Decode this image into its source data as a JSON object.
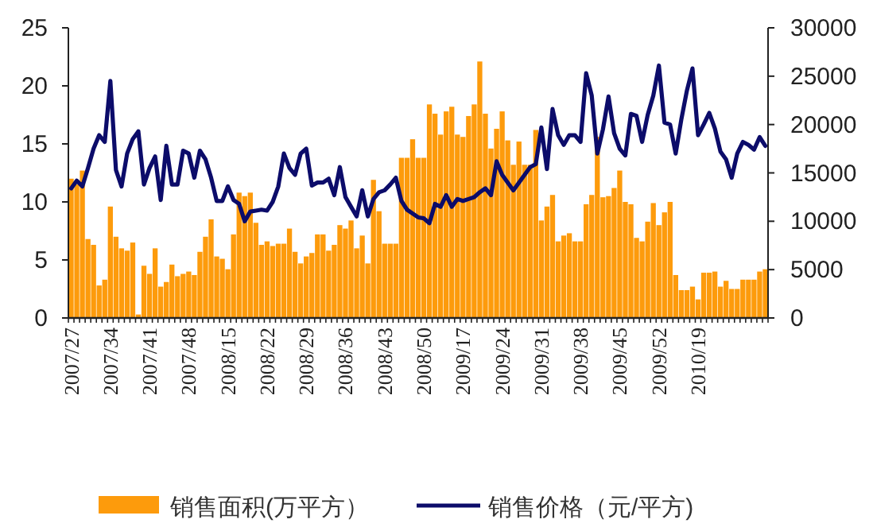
{
  "chart_data": {
    "type": "bar",
    "legend": "bottom",
    "categories": [
      "2007/27",
      null,
      null,
      null,
      null,
      null,
      null,
      "2007/34",
      null,
      null,
      null,
      null,
      null,
      null,
      "2007/41",
      null,
      null,
      null,
      null,
      null,
      null,
      "2007/48",
      null,
      null,
      null,
      null,
      null,
      null,
      "2008/15",
      null,
      null,
      null,
      null,
      null,
      null,
      "2008/22",
      null,
      null,
      null,
      null,
      null,
      null,
      "2008/29",
      null,
      null,
      null,
      null,
      null,
      null,
      "2008/36",
      null,
      null,
      null,
      null,
      null,
      null,
      "2008/43",
      null,
      null,
      null,
      null,
      null,
      null,
      "2008/50",
      null,
      null,
      null,
      null,
      null,
      null,
      "2009/17",
      null,
      null,
      null,
      null,
      null,
      null,
      "2009/24",
      null,
      null,
      null,
      null,
      null,
      null,
      "2009/31",
      null,
      null,
      null,
      null,
      null,
      null,
      "2009/38",
      null,
      null,
      null,
      null,
      null,
      null,
      "2009/45",
      null,
      null,
      null,
      null,
      null,
      null,
      "2009/52",
      null,
      null,
      null,
      null,
      null,
      null,
      "2010/19",
      null,
      null,
      null,
      null,
      null,
      null,
      null,
      null,
      null,
      null,
      null,
      null
    ],
    "ylim": [
      0,
      25
    ],
    "yticks": [
      0,
      5,
      10,
      15,
      20,
      25
    ],
    "y2lim": [
      0,
      30000
    ],
    "y2ticks": [
      0,
      5000,
      10000,
      15000,
      20000,
      25000,
      30000
    ],
    "series": [
      {
        "name": "销售面积(万平方）",
        "color": "#fd9b0c",
        "values": [
          12.0,
          11.5,
          12.7,
          6.8,
          6.3,
          2.8,
          3.3,
          9.6,
          7.0,
          6.0,
          5.8,
          6.5,
          0.3,
          4.5,
          3.8,
          6.0,
          2.7,
          3.1,
          4.6,
          3.6,
          3.8,
          4.0,
          3.7,
          5.7,
          7.0,
          8.5,
          5.3,
          5.1,
          4.2,
          7.2,
          10.8,
          10.5,
          10.8,
          8.2,
          6.3,
          6.6,
          6.2,
          6.4,
          6.4,
          7.7,
          5.7,
          4.7,
          5.3,
          5.6,
          7.2,
          7.2,
          5.8,
          6.3,
          8.0,
          7.7,
          8.4,
          6.0,
          7.1,
          4.7,
          11.9,
          9.2,
          6.4,
          6.4,
          6.4,
          13.8,
          13.8,
          15.4,
          13.8,
          13.8,
          18.4,
          17.6,
          15.8,
          17.8,
          18.2,
          15.8,
          15.6,
          17.4,
          18.4,
          22.1,
          17.6,
          14.6,
          16.3,
          17.8,
          15.3,
          13.2,
          15.2,
          13.2,
          13.2,
          16.2,
          8.4,
          9.6,
          10.6,
          6.6,
          7.1,
          7.3,
          6.6,
          6.6,
          9.8,
          10.6,
          15.6,
          10.4,
          10.5,
          11.2,
          12.7,
          10.0,
          9.8,
          6.9,
          6.6,
          8.3,
          9.9,
          8.0,
          9.1,
          10.0,
          3.7,
          2.4,
          2.4,
          2.7,
          1.6,
          3.9,
          3.9,
          4.0,
          2.7,
          3.2,
          2.5,
          2.5,
          3.3,
          3.3,
          3.3,
          4.0,
          4.2
        ]
      },
      {
        "name": "销售价格（元/平方)",
        "type": "line",
        "axis": "y2",
        "color": "#0c0c6a",
        "values": [
          13400,
          14200,
          13600,
          15500,
          17500,
          18900,
          18200,
          24500,
          15300,
          13600,
          17000,
          18500,
          19300,
          13800,
          15500,
          16700,
          12200,
          17800,
          13800,
          13800,
          17300,
          17000,
          14500,
          17300,
          16400,
          14500,
          12100,
          12100,
          13600,
          12200,
          11800,
          10000,
          11000,
          11100,
          11200,
          11100,
          12000,
          13600,
          17000,
          15500,
          14800,
          17000,
          17500,
          13700,
          14000,
          14000,
          14400,
          12700,
          15600,
          12500,
          11500,
          10500,
          13200,
          10500,
          12300,
          13000,
          13200,
          13800,
          14500,
          12100,
          11200,
          10800,
          10400,
          10300,
          9800,
          11800,
          11500,
          12700,
          11500,
          12300,
          12100,
          12300,
          12500,
          13000,
          13400,
          12700,
          16200,
          14800,
          14000,
          13200,
          14000,
          14800,
          15600,
          15900,
          19700,
          15400,
          21600,
          18900,
          17900,
          18900,
          18900,
          18200,
          25300,
          23000,
          17000,
          19500,
          22900,
          19100,
          17500,
          16800,
          21100,
          20900,
          18200,
          21000,
          23000,
          26100,
          20200,
          20000,
          17000,
          20500,
          23500,
          25800,
          18900,
          20000,
          21200,
          19600,
          17200,
          16400,
          14500,
          17000,
          18200,
          17900,
          17400,
          18700,
          17800
        ]
      }
    ]
  }
}
